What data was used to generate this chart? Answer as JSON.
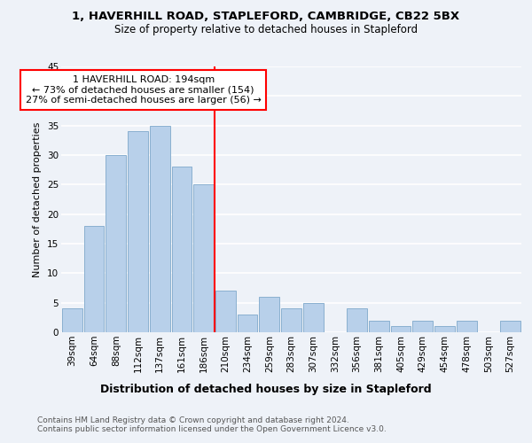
{
  "title1": "1, HAVERHILL ROAD, STAPLEFORD, CAMBRIDGE, CB22 5BX",
  "title2": "Size of property relative to detached houses in Stapleford",
  "xlabel": "Distribution of detached houses by size in Stapleford",
  "ylabel": "Number of detached properties",
  "footnote": "Contains HM Land Registry data © Crown copyright and database right 2024.\nContains public sector information licensed under the Open Government Licence v3.0.",
  "categories": [
    "39sqm",
    "64sqm",
    "88sqm",
    "112sqm",
    "137sqm",
    "161sqm",
    "186sqm",
    "210sqm",
    "234sqm",
    "259sqm",
    "283sqm",
    "307sqm",
    "332sqm",
    "356sqm",
    "381sqm",
    "405sqm",
    "429sqm",
    "454sqm",
    "478sqm",
    "503sqm",
    "527sqm"
  ],
  "values": [
    4,
    18,
    30,
    34,
    35,
    28,
    25,
    7,
    3,
    6,
    4,
    5,
    0,
    4,
    2,
    1,
    2,
    1,
    2,
    0,
    2
  ],
  "bar_color": "#b8d0ea",
  "bar_edgecolor": "#8ab0d0",
  "vline_x": 6.5,
  "vline_color": "red",
  "annotation_text": "1 HAVERHILL ROAD: 194sqm\n← 73% of detached houses are smaller (154)\n27% of semi-detached houses are larger (56) →",
  "annotation_box_color": "white",
  "annotation_box_edgecolor": "red",
  "ylim": [
    0,
    45
  ],
  "yticks": [
    0,
    5,
    10,
    15,
    20,
    25,
    30,
    35,
    40,
    45
  ],
  "background_color": "#eef2f8",
  "plot_background": "#eef2f8",
  "grid_color": "white",
  "title1_fontsize": 9.5,
  "title2_fontsize": 8.5,
  "xlabel_fontsize": 9,
  "ylabel_fontsize": 8,
  "tick_fontsize": 7.5,
  "annotation_fontsize": 8,
  "footnote_fontsize": 6.5
}
